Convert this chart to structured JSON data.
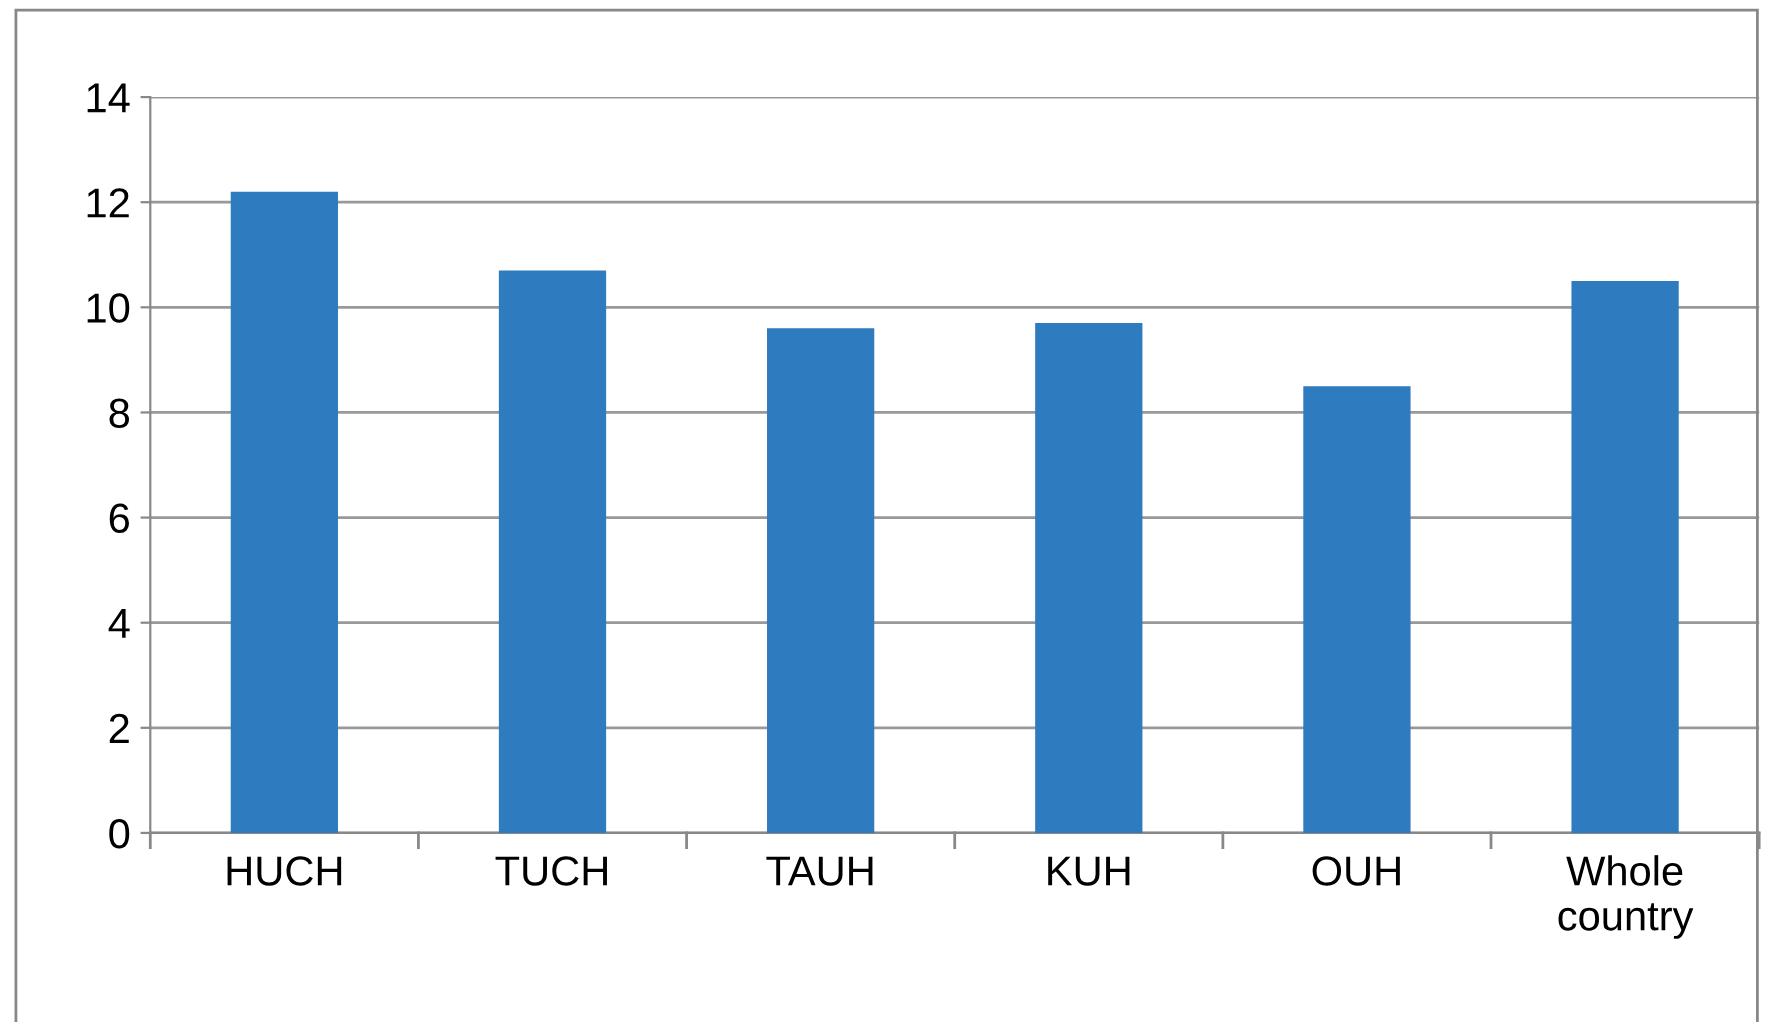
{
  "chart_data": {
    "type": "bar",
    "categories": [
      "HUCH",
      "TUCH",
      "TAUH",
      "KUH",
      "OUH",
      "Whole\ncountry"
    ],
    "values": [
      12.2,
      10.7,
      9.6,
      9.7,
      8.5,
      10.5
    ],
    "color": "#2e7bbf",
    "ylim": [
      0,
      14
    ],
    "yticks": [
      0,
      2,
      4,
      6,
      8,
      10,
      12,
      14
    ],
    "grid": "y"
  }
}
